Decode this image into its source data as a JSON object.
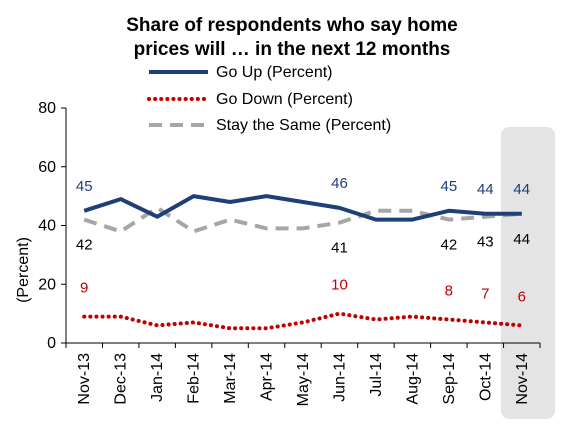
{
  "chart_data": {
    "type": "line",
    "title_lines": [
      "Share of respondents who say home",
      "prices will … in the next 12 months"
    ],
    "ylabel": "(Percent)",
    "xlabel": "",
    "ylim": [
      0,
      80
    ],
    "yticks": [
      "0",
      "20",
      "40",
      "60",
      "80"
    ],
    "categories": [
      "Nov-13",
      "Dec-13",
      "Jan-14",
      "Feb-14",
      "Mar-14",
      "Apr-14",
      "May-14",
      "Jun-14",
      "Jul-14",
      "Aug-14",
      "Sep-14",
      "Oct-14",
      "Nov-14"
    ],
    "series": [
      {
        "name": "Go Up (Percent)",
        "color": "#1f3f77",
        "style": "solid",
        "values": [
          45,
          49,
          43,
          50,
          48,
          50,
          48,
          46,
          42,
          42,
          45,
          44,
          44
        ]
      },
      {
        "name": "Go Down (Percent)",
        "color": "#c00000",
        "style": "dotted",
        "values": [
          9,
          9,
          6,
          7,
          5,
          5,
          7,
          10,
          8,
          9,
          8,
          7,
          6
        ]
      },
      {
        "name": "Stay the Same (Percent)",
        "color": "#a6a6a6",
        "style": "dashed",
        "values": [
          42,
          38,
          46,
          38,
          42,
          39,
          39,
          41,
          45,
          45,
          42,
          43,
          44
        ]
      }
    ],
    "data_labels": [
      {
        "series": 0,
        "index": 0,
        "text": "45"
      },
      {
        "series": 0,
        "index": 7,
        "text": "46"
      },
      {
        "series": 0,
        "index": 10,
        "text": "45"
      },
      {
        "series": 0,
        "index": 11,
        "text": "44"
      },
      {
        "series": 0,
        "index": 12,
        "text": "44"
      },
      {
        "series": 2,
        "index": 0,
        "text": "42"
      },
      {
        "series": 2,
        "index": 7,
        "text": "41"
      },
      {
        "series": 2,
        "index": 10,
        "text": "42"
      },
      {
        "series": 2,
        "index": 11,
        "text": "43"
      },
      {
        "series": 2,
        "index": 12,
        "text": "44"
      },
      {
        "series": 1,
        "index": 0,
        "text": "9"
      },
      {
        "series": 1,
        "index": 7,
        "text": "10"
      },
      {
        "series": 1,
        "index": 10,
        "text": "8"
      },
      {
        "series": 1,
        "index": 11,
        "text": "7"
      },
      {
        "series": 1,
        "index": 12,
        "text": "6"
      }
    ],
    "highlight": {
      "category": "Nov-14",
      "color": "#e4e4e4"
    },
    "grid": false,
    "legend_position": "top"
  }
}
